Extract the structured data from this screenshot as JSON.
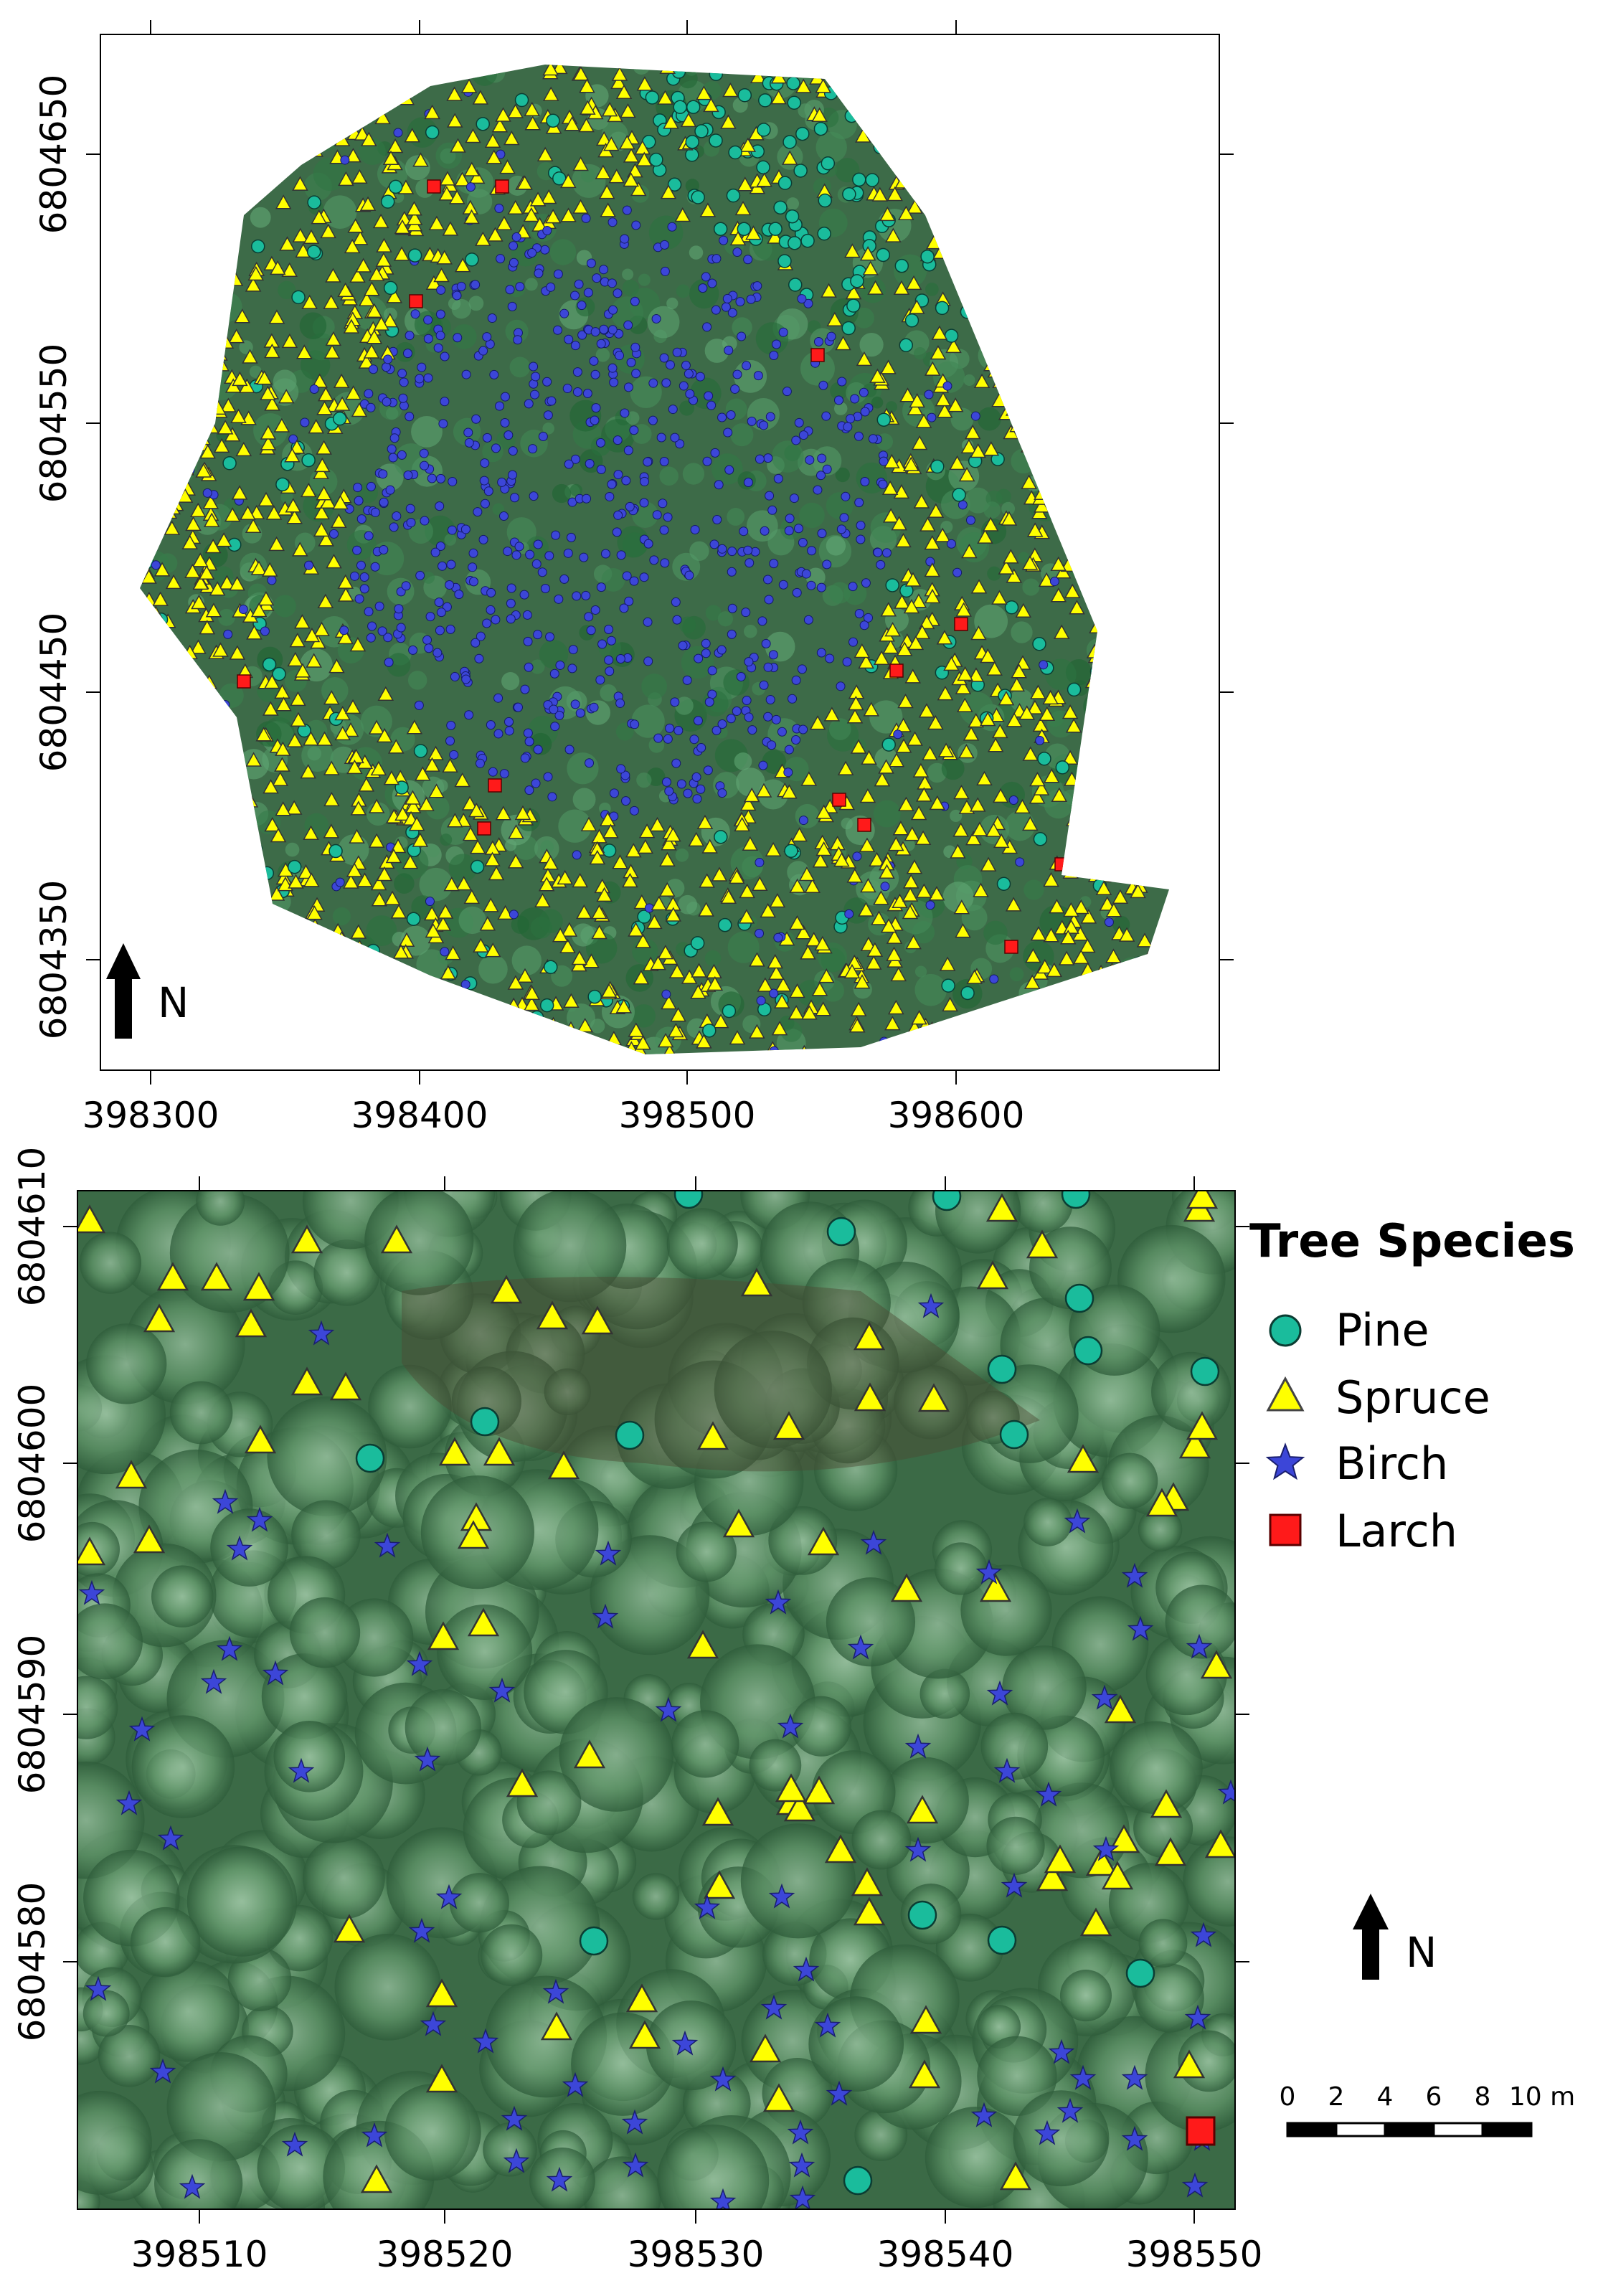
{
  "overview_map": {
    "x_ticks": [
      "398300",
      "398400",
      "398500",
      "398600"
    ],
    "y_ticks": [
      "6804650",
      "6804550",
      "6804450",
      "6804350"
    ],
    "north_label": "N"
  },
  "detail_map": {
    "x_ticks": [
      "398510",
      "398520",
      "398530",
      "398540",
      "398550"
    ],
    "y_ticks": [
      "6804610",
      "6804600",
      "6804590",
      "6804580"
    ],
    "north_label": "N"
  },
  "legend": {
    "title": "Tree Species",
    "items": [
      {
        "label": "Pine",
        "symbol": "circle",
        "color": "#1abc9c"
      },
      {
        "label": "Spruce",
        "symbol": "triangle",
        "color": "#ffff00"
      },
      {
        "label": "Birch",
        "symbol": "star",
        "color": "#3c46d8"
      },
      {
        "label": "Larch",
        "symbol": "square",
        "color": "#ff1a1a"
      }
    ]
  },
  "scale_bar": {
    "labels": [
      "0",
      "2",
      "4",
      "6",
      "8",
      "10 m"
    ]
  },
  "colors": {
    "forest_dark": "#2f5a3a",
    "forest_light": "#5c8f68",
    "pine": "#1abc9c",
    "spruce": "#ffff00",
    "birch": "#3c46d8",
    "larch": "#ff1a1a"
  }
}
